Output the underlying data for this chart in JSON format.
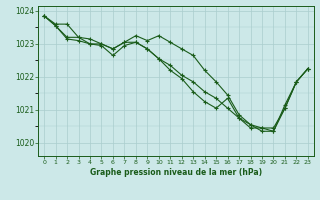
{
  "title": "Graphe pression niveau de la mer (hPa)",
  "bg_color": "#cce8e8",
  "grid_color": "#aacece",
  "line_color": "#1a5c1a",
  "xlim": [
    -0.5,
    23.5
  ],
  "ylim": [
    1019.6,
    1024.15
  ],
  "yticks": [
    1020,
    1021,
    1022,
    1023,
    1024
  ],
  "xticks": [
    0,
    1,
    2,
    3,
    4,
    5,
    6,
    7,
    8,
    9,
    10,
    11,
    12,
    13,
    14,
    15,
    16,
    17,
    18,
    19,
    20,
    21,
    22,
    23
  ],
  "series": [
    [
      1023.85,
      1023.55,
      1023.2,
      1023.2,
      1023.0,
      1023.0,
      1022.85,
      1023.05,
      1023.25,
      1023.1,
      1023.25,
      1023.05,
      1022.85,
      1022.65,
      1022.2,
      1021.85,
      1021.45,
      1020.85,
      1020.55,
      1020.45,
      1020.45,
      1021.05,
      1021.85,
      1022.25
    ],
    [
      1023.85,
      1023.55,
      1023.15,
      1023.1,
      1023.0,
      1022.95,
      1022.65,
      1022.95,
      1023.05,
      1022.85,
      1022.55,
      1022.2,
      1021.95,
      1021.55,
      1021.25,
      1021.05,
      1021.35,
      1020.75,
      1020.45,
      1020.45,
      1020.35,
      1021.05,
      1021.85,
      1022.25
    ],
    [
      1023.85,
      1023.6,
      1023.6,
      1023.2,
      1023.15,
      1023.0,
      1022.85,
      1023.05,
      1023.05,
      1022.85,
      1022.55,
      1022.35,
      1022.05,
      1021.85,
      1021.55,
      1021.35,
      1021.05,
      1020.75,
      1020.55,
      1020.35,
      1020.35,
      1021.15,
      1021.85,
      1022.25
    ]
  ]
}
